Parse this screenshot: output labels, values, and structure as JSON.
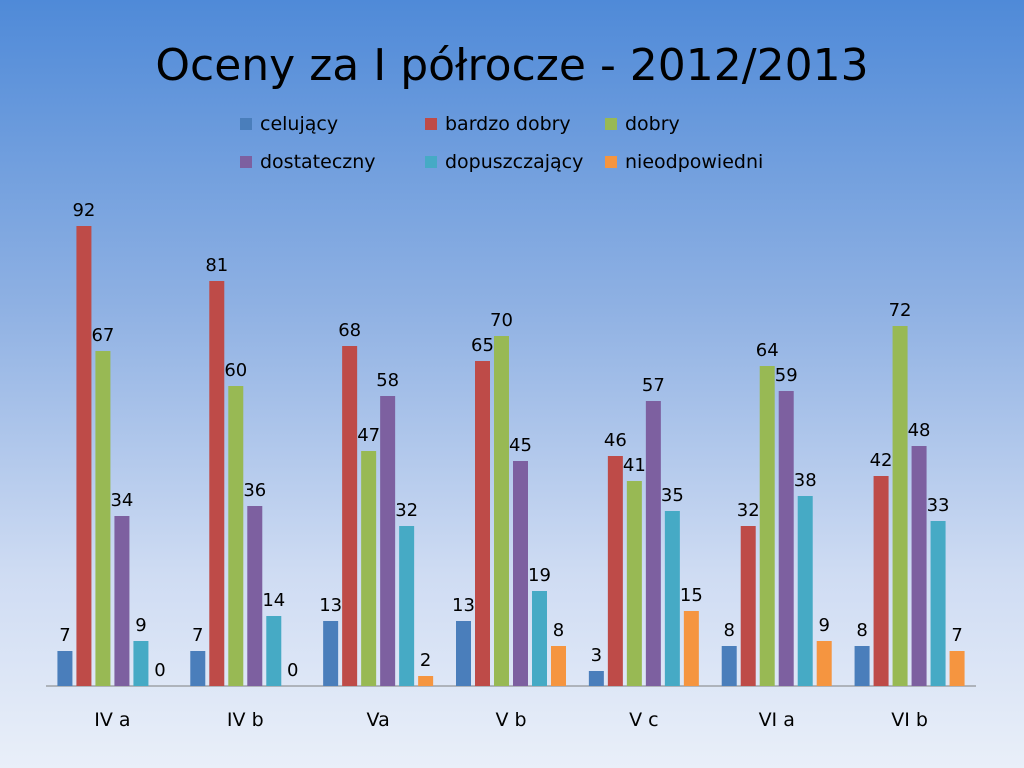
{
  "chart_data": {
    "type": "bar",
    "title": "Oceny za I półrocze - 2012/2013",
    "categories": [
      "IV a",
      "IV b",
      "Va",
      "V b",
      "V c",
      "VI a",
      "VI b"
    ],
    "series": [
      {
        "name": "celujący",
        "color": "#4a7ebb",
        "values": [
          7,
          7,
          13,
          13,
          3,
          8,
          8
        ]
      },
      {
        "name": "bardzo dobry",
        "color": "#be4b48",
        "values": [
          92,
          81,
          68,
          65,
          46,
          32,
          42
        ]
      },
      {
        "name": "dobry",
        "color": "#98b954",
        "values": [
          67,
          60,
          47,
          70,
          41,
          64,
          72
        ]
      },
      {
        "name": "dostateczny",
        "color": "#7d60a0",
        "values": [
          34,
          36,
          58,
          45,
          57,
          59,
          48
        ]
      },
      {
        "name": "dopuszczający",
        "color": "#46aac5",
        "values": [
          9,
          14,
          32,
          19,
          35,
          38,
          33
        ]
      },
      {
        "name": "nieodpowiedni",
        "color": "#f59540",
        "values": [
          0,
          0,
          2,
          8,
          15,
          9,
          7
        ]
      }
    ],
    "ylim": [
      0,
      100
    ],
    "grid": false,
    "legend_position": "top",
    "xlabel": "",
    "ylabel": ""
  }
}
